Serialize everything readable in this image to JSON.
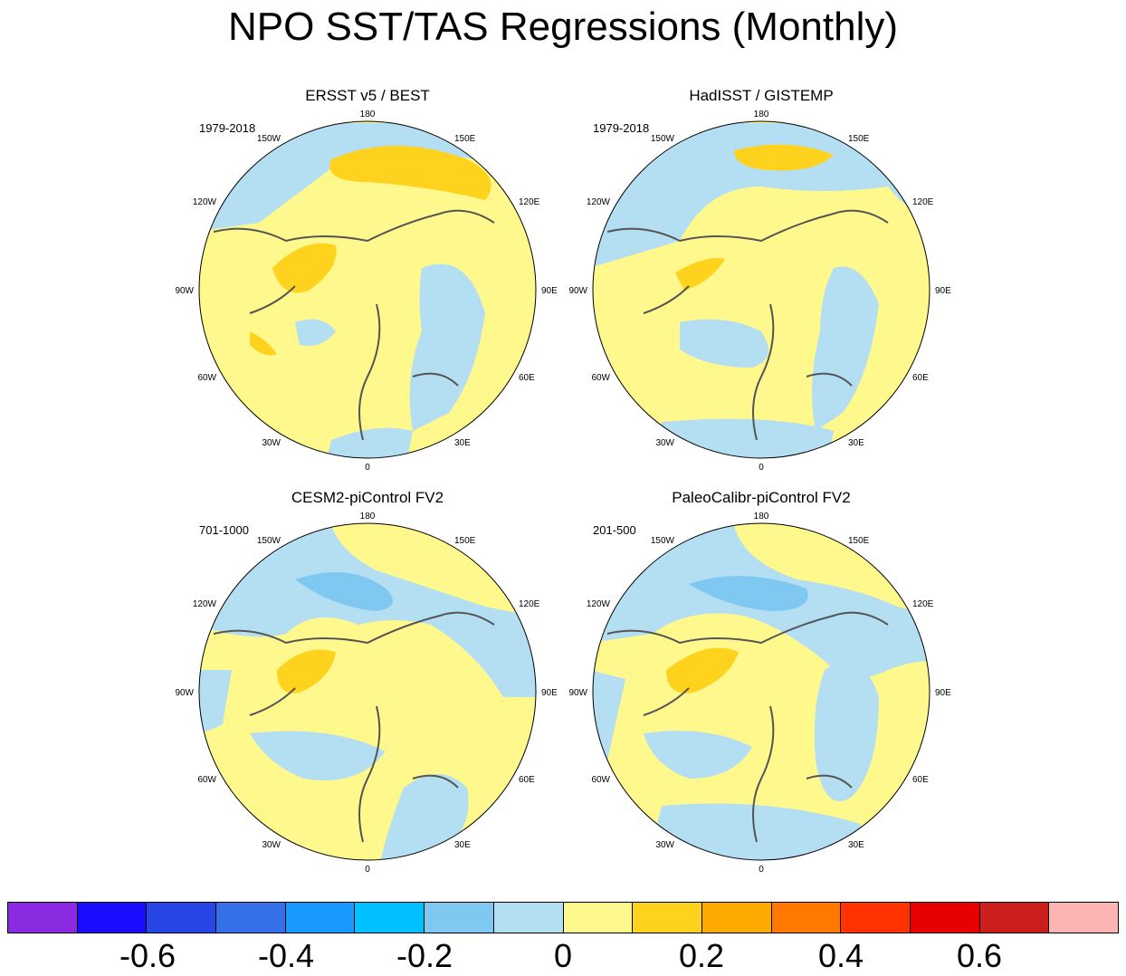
{
  "title": "NPO SST/TAS Regressions (Monthly)",
  "panels": [
    {
      "title": "ERSST v5 / BEST",
      "period": "1979-2018"
    },
    {
      "title": "HadISST / GISTEMP",
      "period": "1979-2018"
    },
    {
      "title": "CESM2-piControl FV2",
      "period": "701-1000"
    },
    {
      "title": "PaleoCalibr-piControl FV2",
      "period": "201-500"
    }
  ],
  "longitude_labels": [
    "180",
    "150E",
    "120E",
    "90E",
    "60E",
    "30E",
    "0",
    "30W",
    "60W",
    "90W",
    "120W",
    "150W"
  ],
  "colorbar": {
    "colors": [
      "#8a2be2",
      "#1a0dff",
      "#2845e6",
      "#3470e8",
      "#1a9aff",
      "#00c0ff",
      "#7ec8f2",
      "#b4def2",
      "#fff88c",
      "#ffd21e",
      "#ffaa00",
      "#ff7800",
      "#ff3200",
      "#e60000",
      "#cd1e1e",
      "#ffb4b4"
    ],
    "labels": [
      "-0.6",
      "-0.4",
      "-0.2",
      "0",
      "0.2",
      "0.4",
      "0.6"
    ]
  },
  "palette": {
    "ocean_background": "#fff88c",
    "negative_light": "#b4def2",
    "negative_mid": "#7ec8f2",
    "positive_mid": "#ffd21e",
    "coastline": "#555555"
  }
}
